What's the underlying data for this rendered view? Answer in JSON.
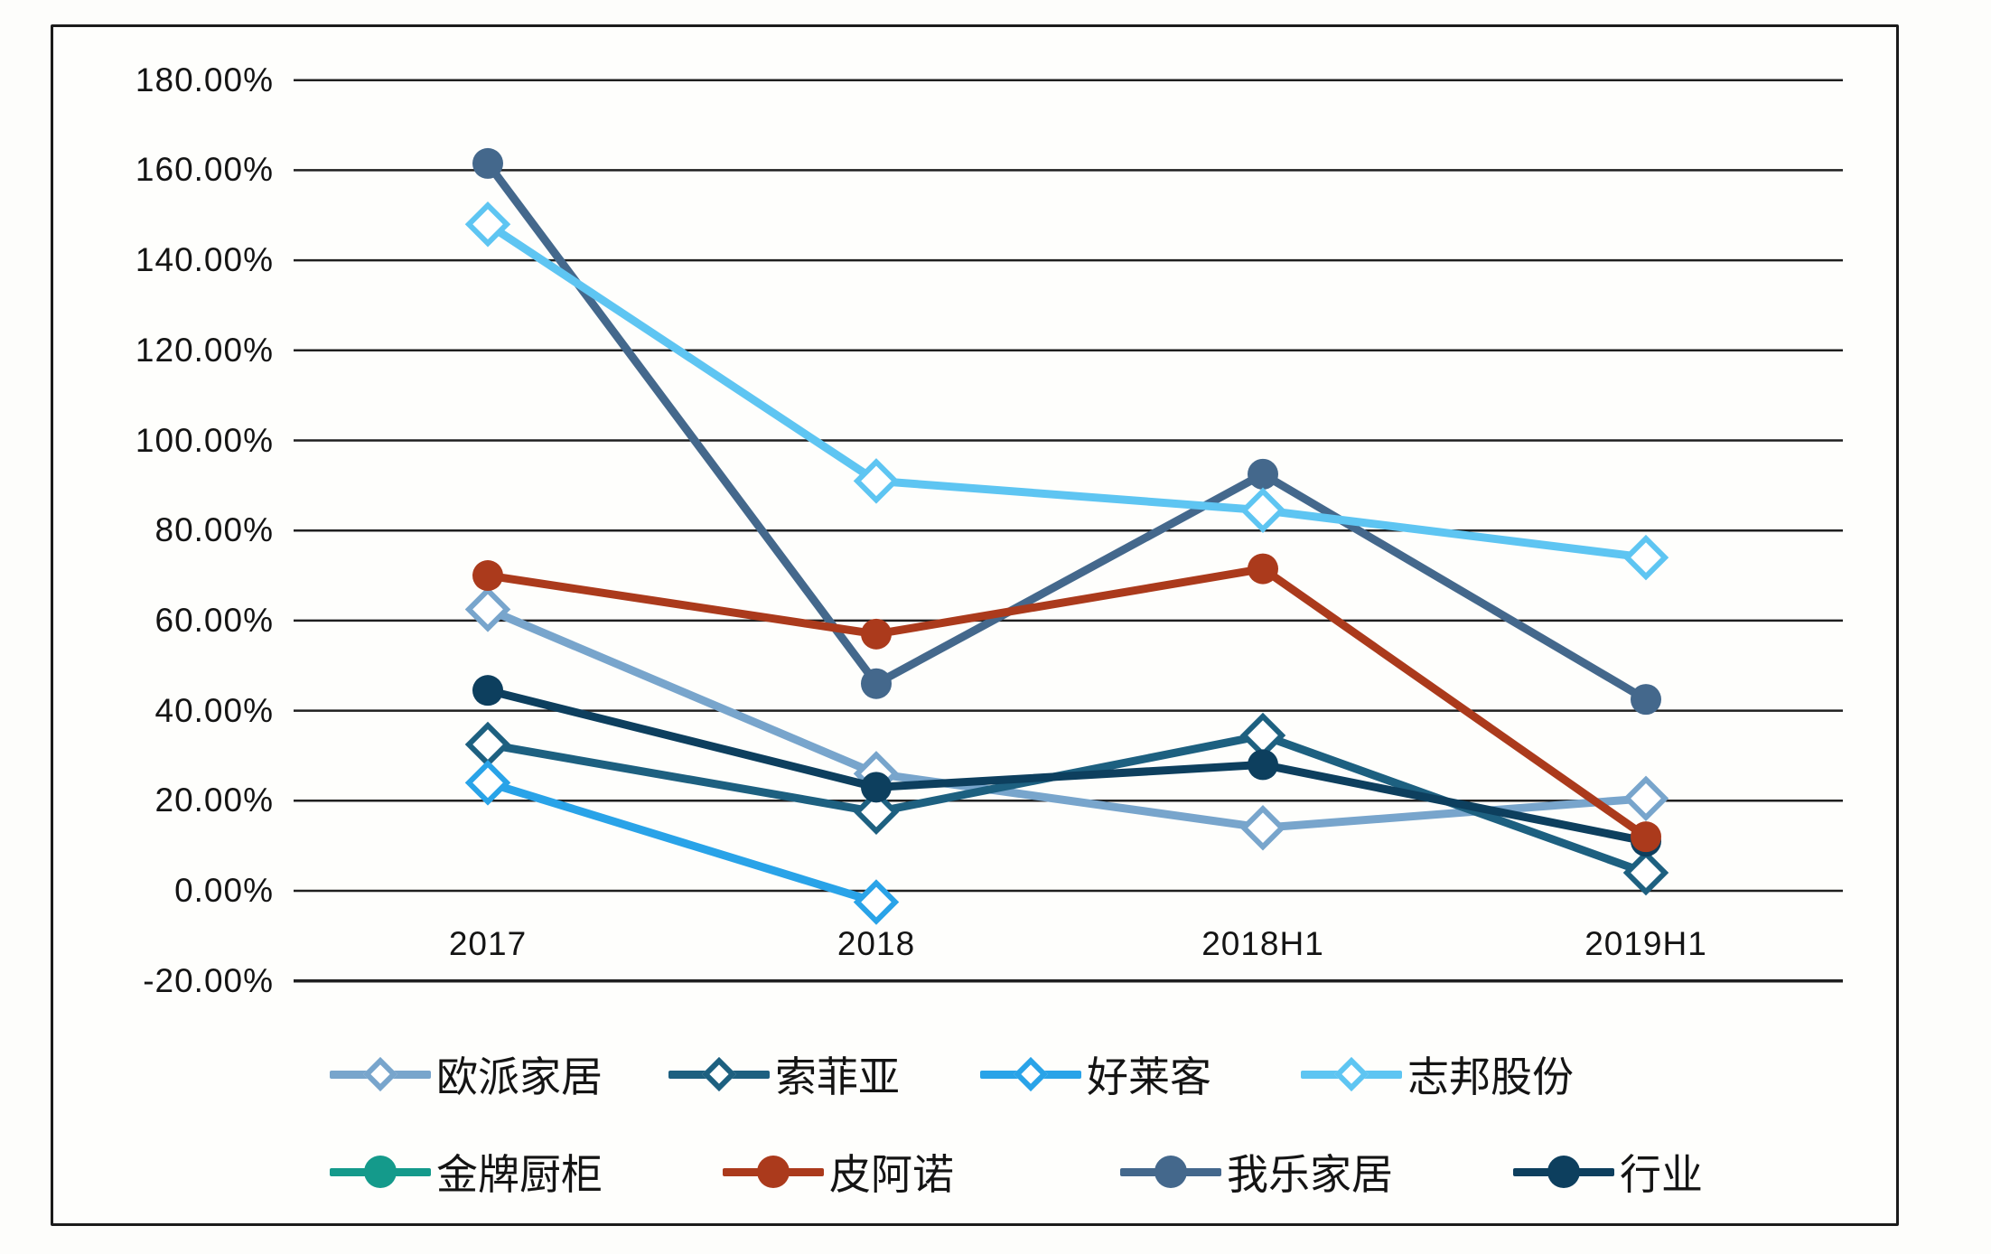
{
  "chart_data": {
    "type": "line",
    "title": "",
    "xlabel": "",
    "ylabel": "",
    "categories": [
      "2017",
      "2018",
      "2018H1",
      "2019H1"
    ],
    "series": [
      {
        "name": "欧派家居",
        "marker": "diamond",
        "color": "#78a5cc",
        "values": [
          62.5,
          26,
          14,
          20.5
        ]
      },
      {
        "name": "索菲亚",
        "marker": "diamond",
        "color": "#1d6080",
        "values": [
          32.5,
          17.5,
          34.5,
          4
        ]
      },
      {
        "name": "好莱客",
        "marker": "diamond",
        "color": "#29a3e8",
        "values": [
          24,
          -2.5,
          null,
          null
        ]
      },
      {
        "name": "志邦股份",
        "marker": "diamond",
        "color": "#5ec5f2",
        "values": [
          148,
          91,
          84.5,
          74
        ]
      },
      {
        "name": "金牌厨柜",
        "marker": "circle",
        "color": "#149a8b",
        "values": [
          null,
          null,
          null,
          null
        ]
      },
      {
        "name": "皮阿诺",
        "marker": "circle",
        "color": "#ab3a1c",
        "values": [
          70,
          57,
          71.5,
          12
        ]
      },
      {
        "name": "我乐家居",
        "marker": "circle",
        "color": "#44688c",
        "values": [
          161.5,
          46,
          92.5,
          42.5
        ]
      },
      {
        "name": "行业",
        "marker": "circle",
        "color": "#0d3f5e",
        "values": [
          44.5,
          23,
          28,
          11
        ]
      }
    ],
    "ylim": [
      -20,
      180
    ],
    "ytick_step": 20,
    "ytick_labels": [
      "180.00%",
      "160.00%",
      "140.00%",
      "120.00%",
      "100.00%",
      "80.00%",
      "60.00%",
      "40.00%",
      "20.00%",
      "0.00%",
      "-20.00%"
    ],
    "grid": "horizontal",
    "legend_position": "bottom",
    "legend_rows": [
      [
        "欧派家居",
        "索菲亚",
        "好莱客",
        "志邦股份"
      ],
      [
        "金牌厨柜",
        "皮阿诺",
        "我乐家居",
        "行业"
      ]
    ]
  }
}
